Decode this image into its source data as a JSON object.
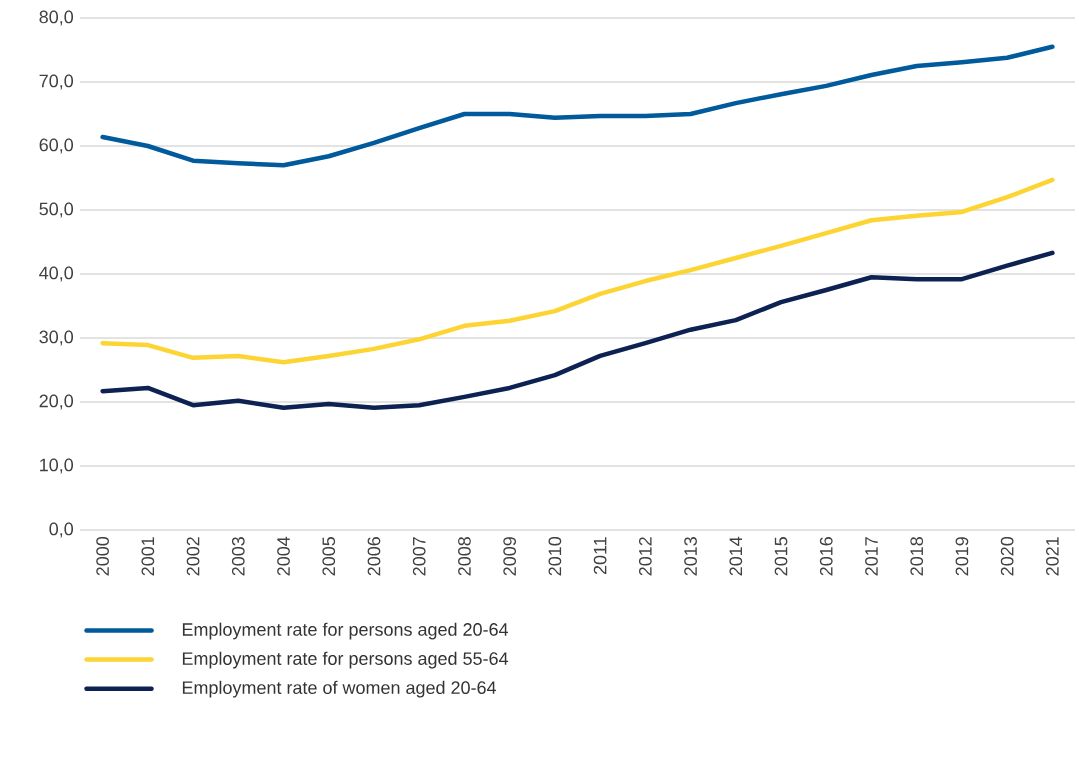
{
  "chart_data": {
    "type": "line",
    "categories": [
      "2000",
      "2001",
      "2002",
      "2003",
      "2004",
      "2005",
      "2006",
      "2007",
      "2008",
      "2009",
      "2010",
      "2011",
      "2012",
      "2013",
      "2014",
      "2015",
      "2016",
      "2017",
      "2018",
      "2019",
      "2020",
      "2021"
    ],
    "series": [
      {
        "name": "Employment rate for persons aged 20-64",
        "color": "#005a9c",
        "values": [
          61.4,
          60.0,
          57.7,
          57.3,
          57.0,
          58.4,
          60.5,
          62.8,
          65.0,
          65.0,
          64.4,
          64.7,
          64.7,
          65.0,
          66.7,
          68.1,
          69.4,
          71.1,
          72.5,
          73.1,
          73.8,
          75.5
        ]
      },
      {
        "name": "Employment rate for persons aged 55-64",
        "color": "#fcd535",
        "values": [
          29.2,
          28.9,
          26.9,
          27.2,
          26.2,
          27.2,
          28.3,
          29.8,
          31.9,
          32.7,
          34.2,
          36.9,
          38.9,
          40.6,
          42.5,
          44.4,
          46.4,
          48.4,
          49.1,
          49.7,
          52.0,
          54.7
        ]
      },
      {
        "name": "Employment rate of women aged 20-64",
        "color": "#0d2252",
        "values": [
          21.7,
          22.2,
          19.5,
          20.2,
          19.1,
          19.7,
          19.1,
          19.5,
          20.8,
          22.2,
          24.2,
          27.2,
          29.2,
          31.3,
          32.8,
          35.6,
          37.5,
          39.5,
          39.2,
          39.2,
          41.3,
          43.3
        ]
      }
    ],
    "ylim": [
      0,
      80
    ],
    "yticks": [
      {
        "value": 0,
        "label": "0,0"
      },
      {
        "value": 10,
        "label": "10,0"
      },
      {
        "value": 20,
        "label": "20,0"
      },
      {
        "value": 30,
        "label": "30,0"
      },
      {
        "value": 40,
        "label": "40,0"
      },
      {
        "value": 50,
        "label": "50,0"
      },
      {
        "value": 60,
        "label": "60,0"
      },
      {
        "value": 70,
        "label": "70,0"
      },
      {
        "value": 80,
        "label": "80,0"
      }
    ],
    "grid": "y",
    "legend": "bottom",
    "marker": "none",
    "line_style": "solid"
  }
}
